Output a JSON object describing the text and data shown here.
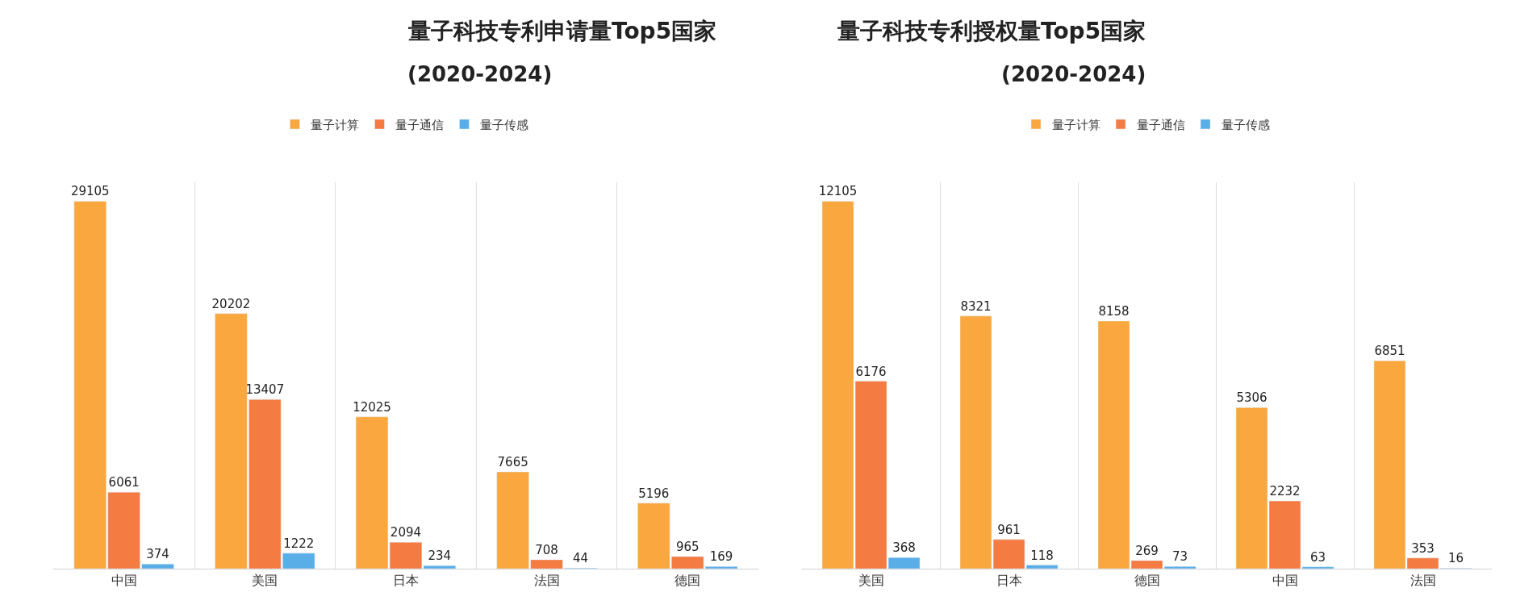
{
  "chart_data": [
    {
      "type": "bar",
      "title": "量子科技专利申请量Top5国家",
      "subtitle": "(2020-2024)",
      "categories": [
        "中国",
        "美国",
        "日本",
        "法国",
        "德国"
      ],
      "series": [
        {
          "name": "量子计算",
          "color": "#f9a73e",
          "values": [
            29105,
            20202,
            12025,
            7665,
            5196
          ]
        },
        {
          "name": "量子通信",
          "color": "#f47b42",
          "values": [
            6061,
            13407,
            2094,
            708,
            965
          ]
        },
        {
          "name": "量子传感",
          "color": "#5aaee8",
          "values": [
            374,
            1222,
            234,
            44,
            169
          ]
        }
      ],
      "data_labels": true,
      "legend": "top",
      "grid": "x",
      "tick_labels": "x"
    },
    {
      "type": "bar",
      "title": "量子科技专利授权量Top5国家",
      "subtitle": "(2020-2024)",
      "categories": [
        "美国",
        "日本",
        "德国",
        "中国",
        "法国"
      ],
      "series": [
        {
          "name": "量子计算",
          "color": "#f9a73e",
          "values": [
            12105,
            8321,
            8158,
            5306,
            6851
          ]
        },
        {
          "name": "量子通信",
          "color": "#f47b42",
          "values": [
            6176,
            961,
            269,
            2232,
            353
          ]
        },
        {
          "name": "量子传感",
          "color": "#5aaee8",
          "values": [
            368,
            118,
            73,
            63,
            16
          ]
        }
      ],
      "data_labels": true,
      "legend": "top",
      "grid": "x",
      "tick_labels": "x"
    }
  ]
}
